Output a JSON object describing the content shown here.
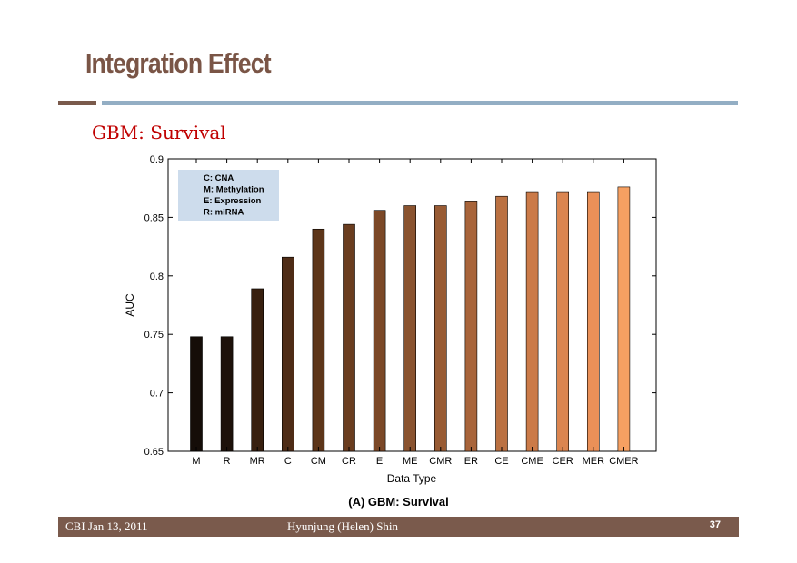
{
  "slide": {
    "title": "Integration Effect",
    "subtitle": "GBM: Survival",
    "caption": "(A) GBM: Survival"
  },
  "footer": {
    "left": "CBI Jan 13, 2011",
    "center": "Hyunjung (Helen) Shin",
    "page_number": "37"
  },
  "chart_data": {
    "type": "bar",
    "xlabel": "Data Type",
    "ylabel": "AUC",
    "ylim": [
      0.65,
      0.9
    ],
    "yticks": [
      0.65,
      0.7,
      0.75,
      0.8,
      0.85,
      0.9
    ],
    "ytick_labels": [
      "0.65",
      "0.7",
      "0.75",
      "0.8",
      "0.85",
      "0.9"
    ],
    "categories": [
      "M",
      "R",
      "MR",
      "C",
      "CM",
      "CR",
      "E",
      "ME",
      "CMR",
      "ER",
      "CE",
      "CME",
      "CER",
      "MER",
      "CMER"
    ],
    "values": [
      0.748,
      0.748,
      0.789,
      0.816,
      0.84,
      0.844,
      0.856,
      0.86,
      0.86,
      0.864,
      0.868,
      0.872,
      0.872,
      0.872,
      0.876
    ],
    "bar_colors": [
      "#150d08",
      "#1d110a",
      "#38200f",
      "#4e2c16",
      "#5d3519",
      "#6a3d1f",
      "#7b4827",
      "#8a532f",
      "#985b34",
      "#a8643a",
      "#bb7142",
      "#cb7a48",
      "#db8550",
      "#ea9058",
      "#f6a062"
    ],
    "legend": {
      "position": "top-left",
      "background": "#cddcec",
      "entries": [
        "C: CNA",
        "M: Methylation",
        "E: Expression",
        "R: miRNA"
      ]
    },
    "grid": false
  }
}
